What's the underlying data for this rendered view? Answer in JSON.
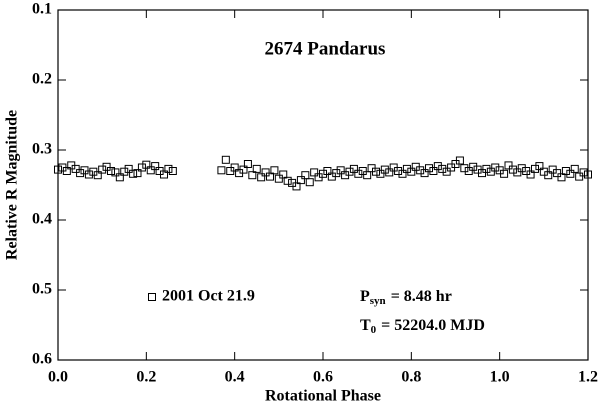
{
  "chart_data": {
    "type": "scatter",
    "title": "2674 Pandarus",
    "x_label": "Rotational Phase",
    "y_label": "Relative R Magnitude",
    "xlim": [
      0,
      1.2
    ],
    "ylim": [
      0.1,
      0.6
    ],
    "y_inverted": true,
    "xticks": [
      {
        "value": 0,
        "label": "0.0"
      },
      0.2,
      0.4,
      0.6,
      0.8,
      {
        "value": 1,
        "label": "1.0"
      },
      1.2
    ],
    "yticks": [
      0.1,
      0.2,
      0.3,
      0.4,
      0.5,
      0.6
    ],
    "grid": false,
    "annotations": {
      "period": {
        "symbol": "P",
        "subscript": "syn",
        "text": "= 8.48 hr"
      },
      "epoch": {
        "symbol": "T",
        "subscript": "0",
        "text": "= 52204.0 MJD"
      }
    },
    "series": [
      {
        "name": "2001 Oct 21.9",
        "color": "#000000",
        "marker": "open-square",
        "x": [
          0.0,
          0.01,
          0.02,
          0.03,
          0.04,
          0.05,
          0.06,
          0.07,
          0.08,
          0.09,
          0.1,
          0.11,
          0.12,
          0.13,
          0.14,
          0.15,
          0.16,
          0.17,
          0.18,
          0.19,
          0.2,
          0.21,
          0.22,
          0.23,
          0.24,
          0.25,
          0.26,
          0.37,
          0.38,
          0.39,
          0.4,
          0.41,
          0.42,
          0.43,
          0.44,
          0.45,
          0.46,
          0.47,
          0.48,
          0.49,
          0.5,
          0.51,
          0.52,
          0.53,
          0.54,
          0.55,
          0.56,
          0.57,
          0.58,
          0.59,
          0.6,
          0.61,
          0.62,
          0.63,
          0.64,
          0.65,
          0.66,
          0.67,
          0.68,
          0.69,
          0.7,
          0.71,
          0.72,
          0.73,
          0.74,
          0.75,
          0.76,
          0.77,
          0.78,
          0.79,
          0.8,
          0.81,
          0.82,
          0.83,
          0.84,
          0.85,
          0.86,
          0.87,
          0.88,
          0.89,
          0.9,
          0.91,
          0.92,
          0.93,
          0.94,
          0.95,
          0.96,
          0.97,
          0.98,
          0.99,
          1.0,
          1.01,
          1.02,
          1.03,
          1.04,
          1.05,
          1.06,
          1.07,
          1.08,
          1.09,
          1.1,
          1.11,
          1.12,
          1.13,
          1.14,
          1.15,
          1.16,
          1.17,
          1.18,
          1.19,
          1.2
        ],
        "values": [
          0.328,
          0.325,
          0.33,
          0.322,
          0.327,
          0.333,
          0.329,
          0.335,
          0.331,
          0.336,
          0.328,
          0.324,
          0.33,
          0.332,
          0.339,
          0.331,
          0.327,
          0.334,
          0.333,
          0.325,
          0.321,
          0.329,
          0.323,
          0.33,
          0.335,
          0.327,
          0.33,
          0.329,
          0.314,
          0.33,
          0.325,
          0.333,
          0.328,
          0.32,
          0.336,
          0.327,
          0.339,
          0.332,
          0.338,
          0.329,
          0.341,
          0.335,
          0.344,
          0.347,
          0.352,
          0.343,
          0.336,
          0.346,
          0.332,
          0.339,
          0.334,
          0.33,
          0.338,
          0.333,
          0.329,
          0.336,
          0.331,
          0.327,
          0.334,
          0.33,
          0.336,
          0.326,
          0.331,
          0.334,
          0.328,
          0.332,
          0.325,
          0.33,
          0.334,
          0.327,
          0.331,
          0.324,
          0.329,
          0.333,
          0.326,
          0.33,
          0.323,
          0.327,
          0.331,
          0.325,
          0.32,
          0.315,
          0.326,
          0.33,
          0.324,
          0.328,
          0.333,
          0.327,
          0.331,
          0.325,
          0.329,
          0.334,
          0.322,
          0.328,
          0.332,
          0.326,
          0.33,
          0.335,
          0.327,
          0.323,
          0.331,
          0.336,
          0.328,
          0.333,
          0.339,
          0.33,
          0.334,
          0.327,
          0.338,
          0.332,
          0.335
        ]
      }
    ]
  }
}
